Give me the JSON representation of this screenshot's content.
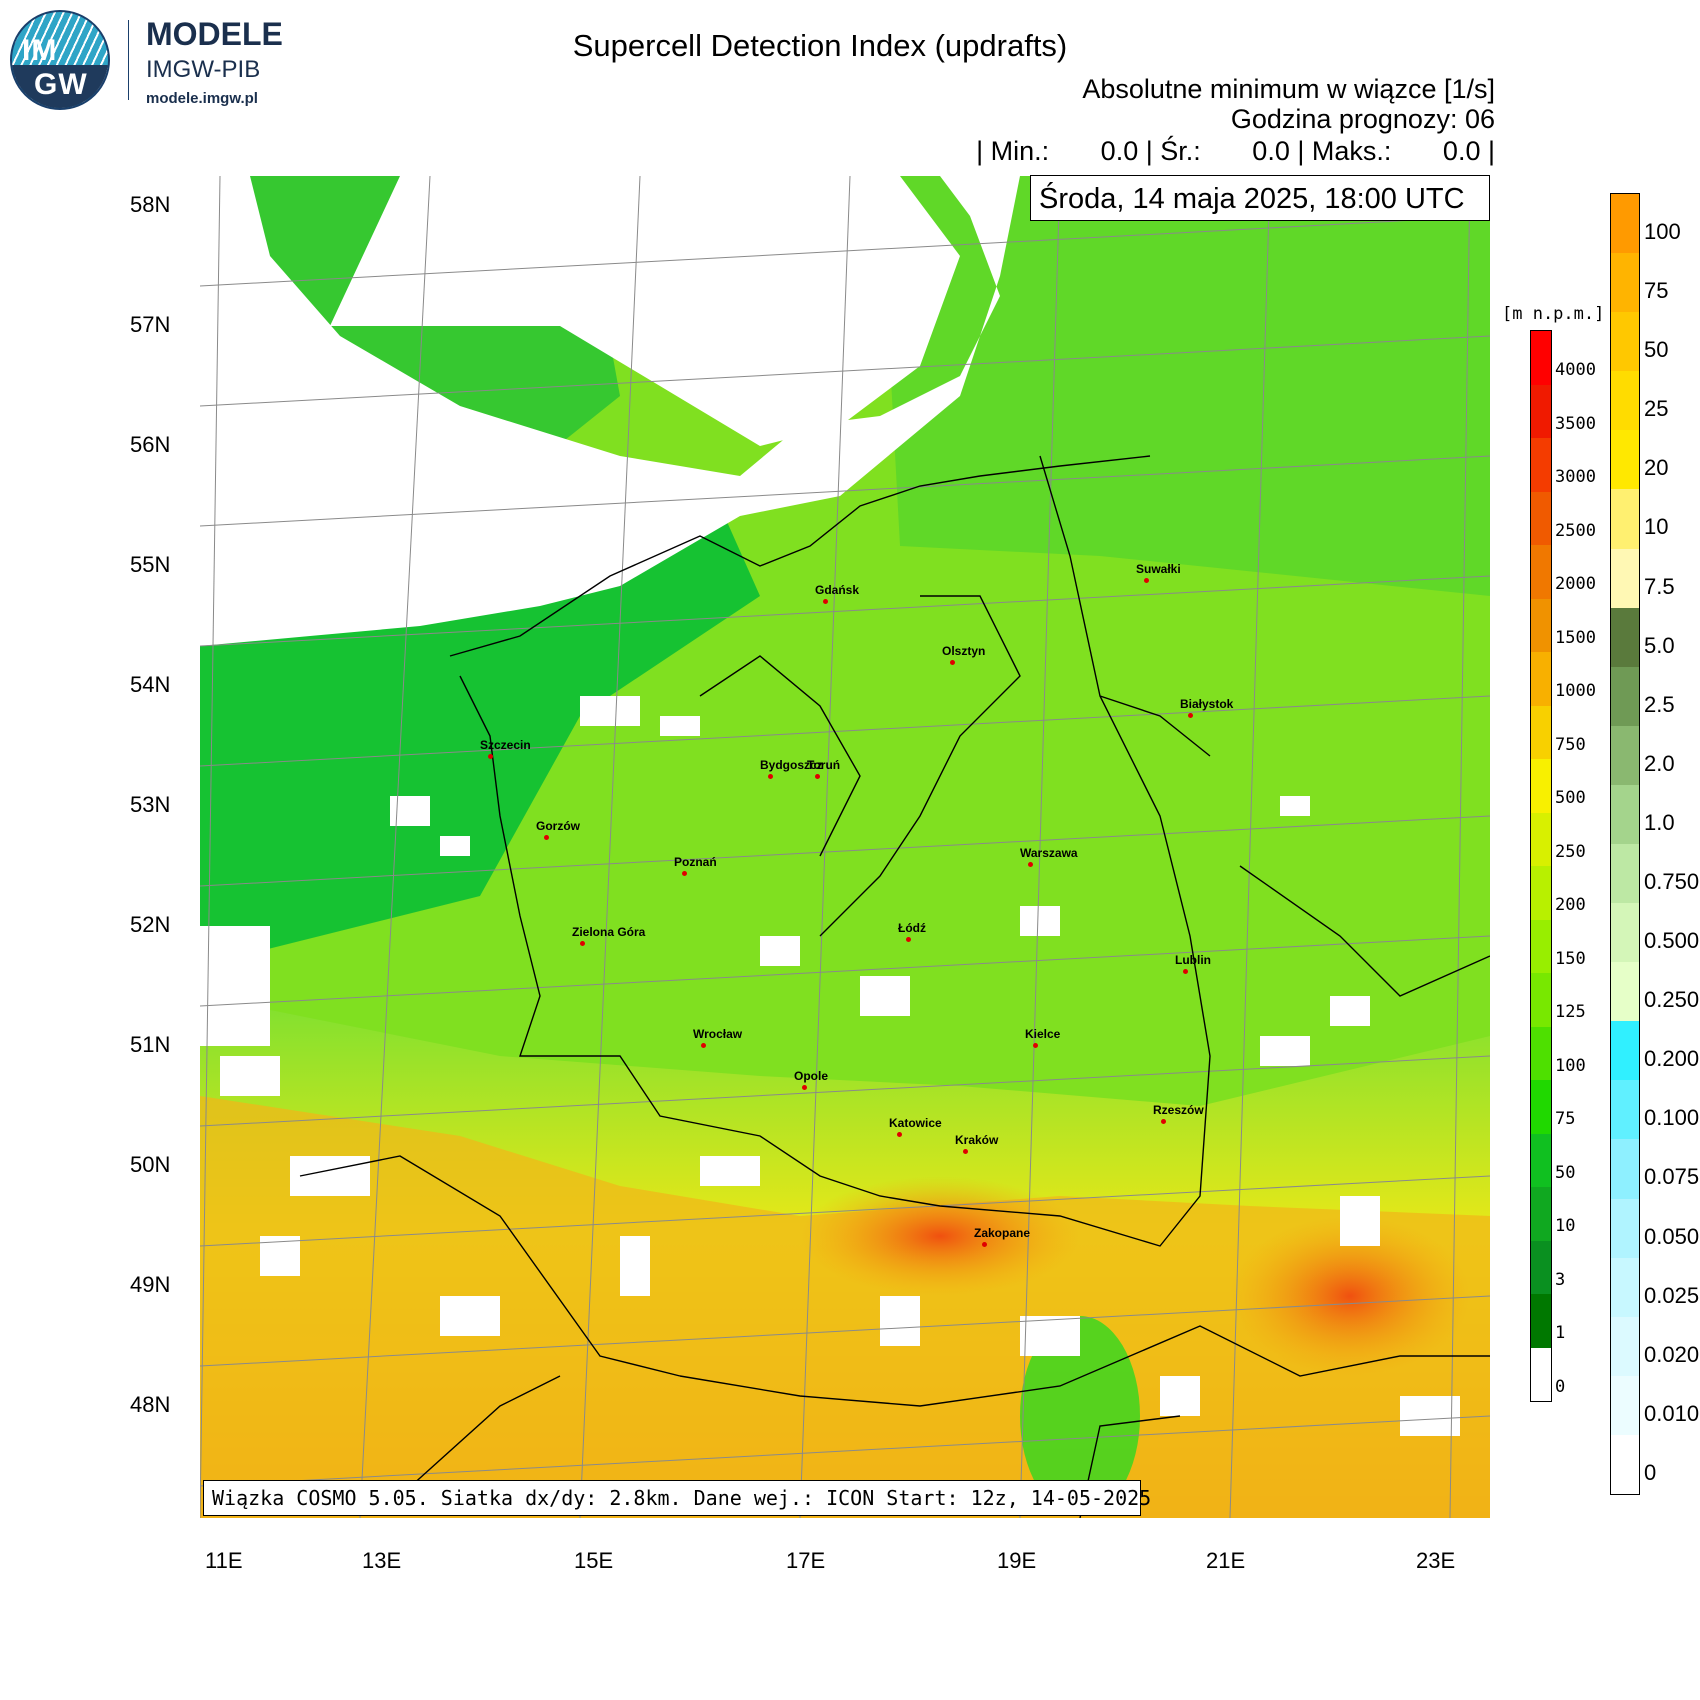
{
  "logo": {
    "circle_top": "IM",
    "circle_bottom": "GW",
    "line1": "MODELE",
    "line2": "IMGW-PIB",
    "line3": "modele.imgw.pl"
  },
  "header": {
    "title": "Supercell Detection Index (updrafts)",
    "subtitle": "Absolutne minimum w wiązce [1/s]",
    "forecast_hour": "Godzina prognozy: 06",
    "stats": {
      "sep": "|",
      "min_label": "Min.:",
      "min_value": "0.0",
      "mean_label": "Śr.:",
      "mean_value": "0.0",
      "max_label": "Maks.:",
      "max_value": "0.0"
    },
    "date": "Środa, 14 maja 2025, 18:00 UTC"
  },
  "footer": "Wiązka COSMO 5.05. Siatka dx/dy: 2.8km. Dane wej.: ICON Start: 12z, 14-05-2025",
  "latitudes": [
    "58N",
    "57N",
    "56N",
    "55N",
    "54N",
    "53N",
    "52N",
    "51N",
    "50N",
    "49N",
    "48N"
  ],
  "longitudes": [
    "11E",
    "13E",
    "15E",
    "17E",
    "19E",
    "21E",
    "23E"
  ],
  "cities": [
    "Gdańsk",
    "Suwałki",
    "Olsztyn",
    "Białystok",
    "Szczecin",
    "Bydgoszcz",
    "Toruń",
    "Gorzów",
    "Warszawa",
    "Poznań",
    "Łódź",
    "Zielona Góra",
    "Lublin",
    "Wrocław",
    "Kielce",
    "Opole",
    "Rzeszów",
    "Katowice",
    "Kraków",
    "Zakopane"
  ],
  "terrain_legend": {
    "unit": "[m n.p.m.]",
    "labels": [
      "4000",
      "3500",
      "3000",
      "2500",
      "2000",
      "1500",
      "1000",
      "750",
      "500",
      "250",
      "200",
      "150",
      "125",
      "100",
      "75",
      "50",
      "10",
      "3",
      "1",
      "0"
    ],
    "colors": [
      "#ff0000",
      "#f01a00",
      "#f43c00",
      "#f05a00",
      "#f07800",
      "#f09200",
      "#f8b000",
      "#f8d000",
      "#f8f000",
      "#d8f000",
      "#b8f000",
      "#98ee00",
      "#78e800",
      "#4ee000",
      "#20d800",
      "#10c020",
      "#10a820",
      "#0a9020",
      "#007800",
      "#ffffff"
    ]
  },
  "sdi_legend": {
    "labels": [
      "100",
      "75",
      "50",
      "25",
      "20",
      "10",
      "7.5",
      "5.0",
      "2.5",
      "2.0",
      "1.0",
      "0.750",
      "0.500",
      "0.250",
      "0.200",
      "0.100",
      "0.075",
      "0.050",
      "0.025",
      "0.020",
      "0.010",
      "0"
    ],
    "colors": [
      "#ff9a00",
      "#ffb400",
      "#ffc800",
      "#ffdc00",
      "#ffe800",
      "#fff070",
      "#fff8b4",
      "#5a7a3c",
      "#6f9a55",
      "#8ab870",
      "#a4d48c",
      "#bde8a4",
      "#d4f6b8",
      "#e6ffc8",
      "#30f0ff",
      "#60f0ff",
      "#8ef0ff",
      "#b0f4ff",
      "#c8f8ff",
      "#dcfaff",
      "#ecfdff",
      "#ffffff"
    ]
  }
}
